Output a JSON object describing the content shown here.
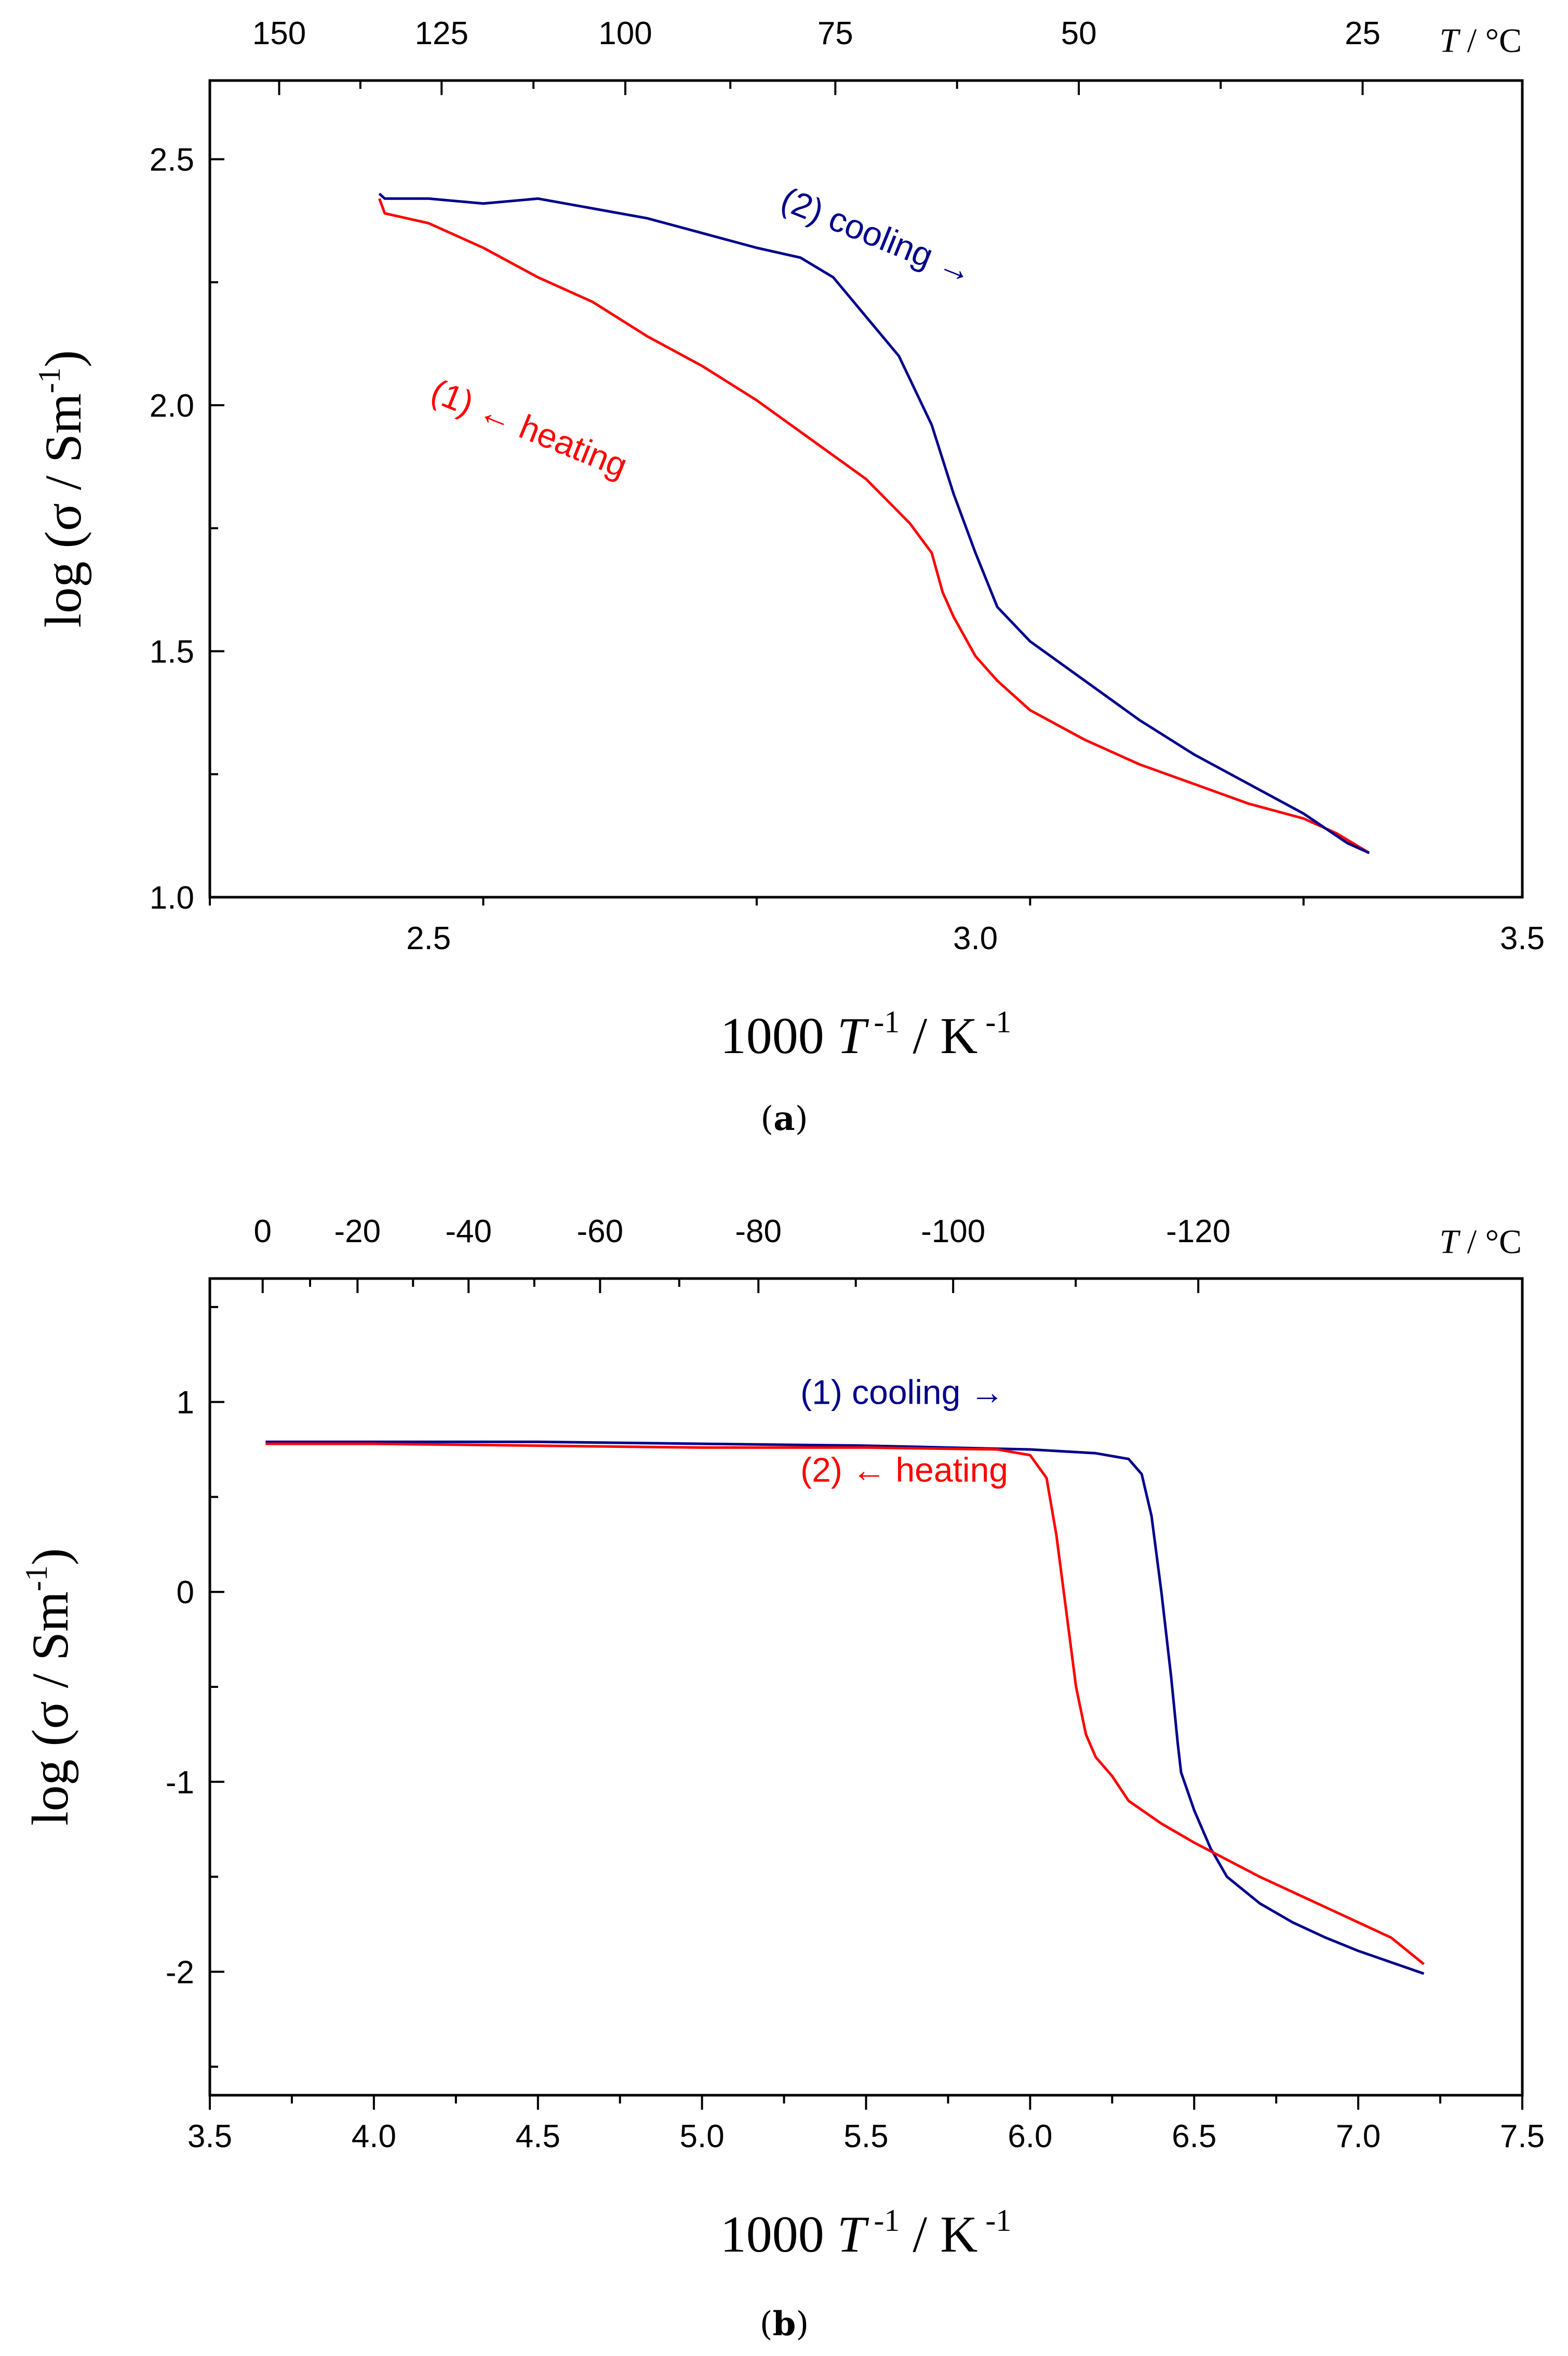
{
  "chart_data": [
    {
      "type": "line",
      "panel": "a",
      "caption": {
        "open": "(",
        "letter": "a",
        "close": ")"
      },
      "xlabel": {
        "base": "1000 ",
        "t": "T",
        "texp": " -1",
        "mid": " / K",
        "kexp": " -1"
      },
      "ylabel": {
        "main": "log (σ / Sm",
        "exp": "-1",
        "close": ")"
      },
      "xlim": [
        2.3,
        3.5
      ],
      "ylim": [
        1.0,
        2.66
      ],
      "x_ticks": [
        {
          "v": 2.5,
          "label": "2.5"
        },
        {
          "v": 3.0,
          "label": "3.0"
        },
        {
          "v": 3.5,
          "label": "3.5"
        }
      ],
      "y_ticks": [
        {
          "v": 1.0,
          "label": "1.0"
        },
        {
          "v": 1.5,
          "label": "1.5"
        },
        {
          "v": 2.0,
          "label": "2.0"
        },
        {
          "v": 2.5,
          "label": "2.5"
        }
      ],
      "top_axis": {
        "unit_t": "T",
        "unit_rest": " / °C",
        "ticks": [
          {
            "v": 2.3634,
            "label": "150"
          },
          {
            "v": 2.5119,
            "label": "125"
          },
          {
            "v": 2.6799,
            "label": "100"
          },
          {
            "v": 2.8719,
            "label": "75"
          },
          {
            "v": 3.0945,
            "label": "50"
          },
          {
            "v": 3.354,
            "label": "25"
          }
        ]
      },
      "series": [
        {
          "name": "(1) ← heating",
          "color": "#ff0000",
          "x": [
            2.455,
            2.46,
            2.5,
            2.55,
            2.6,
            2.65,
            2.7,
            2.75,
            2.8,
            2.85,
            2.9,
            2.94,
            2.96,
            2.97,
            2.98,
            3.0,
            3.02,
            3.05,
            3.1,
            3.15,
            3.2,
            3.25,
            3.3,
            3.33,
            3.36
          ],
          "y": [
            2.42,
            2.39,
            2.37,
            2.32,
            2.26,
            2.21,
            2.14,
            2.08,
            2.01,
            1.93,
            1.85,
            1.76,
            1.7,
            1.62,
            1.57,
            1.49,
            1.44,
            1.38,
            1.32,
            1.27,
            1.23,
            1.19,
            1.16,
            1.13,
            1.09
          ]
        },
        {
          "name": "(2) cooling →",
          "color": "#00008b",
          "x": [
            2.455,
            2.46,
            2.5,
            2.55,
            2.6,
            2.65,
            2.7,
            2.75,
            2.8,
            2.84,
            2.87,
            2.9,
            2.93,
            2.96,
            2.98,
            3.0,
            3.02,
            3.05,
            3.1,
            3.15,
            3.2,
            3.25,
            3.3,
            3.34,
            3.36
          ],
          "y": [
            2.43,
            2.42,
            2.42,
            2.41,
            2.42,
            2.4,
            2.38,
            2.35,
            2.32,
            2.3,
            2.26,
            2.18,
            2.1,
            1.96,
            1.82,
            1.7,
            1.59,
            1.52,
            1.44,
            1.36,
            1.29,
            1.23,
            1.17,
            1.11,
            1.09
          ]
        }
      ],
      "annotations": [
        {
          "text": "(2) cooling →",
          "color": "#00008b",
          "x": 2.82,
          "y": 2.4,
          "rotate": 22
        },
        {
          "text": "(1) ← heating",
          "color": "#ff0000",
          "x": 2.5,
          "y": 2.01,
          "rotate": 22
        }
      ]
    },
    {
      "type": "line",
      "panel": "b",
      "caption": {
        "open": "(",
        "letter": "b",
        "close": ")"
      },
      "xlabel": {
        "base": "1000 ",
        "t": "T",
        "texp": " -1",
        "mid": " / K",
        "kexp": " -1"
      },
      "ylabel": {
        "main": "log (σ / Sm",
        "exp": "-1",
        "close": ")"
      },
      "xlim": [
        3.5,
        7.5
      ],
      "ylim": [
        -2.65,
        1.65
      ],
      "x_ticks": [
        {
          "v": 3.5,
          "label": "3.5"
        },
        {
          "v": 4.0,
          "label": "4.0"
        },
        {
          "v": 4.5,
          "label": "4.5"
        },
        {
          "v": 5.0,
          "label": "5.0"
        },
        {
          "v": 5.5,
          "label": "5.5"
        },
        {
          "v": 6.0,
          "label": "6.0"
        },
        {
          "v": 6.5,
          "label": "6.5"
        },
        {
          "v": 7.0,
          "label": "7.0"
        },
        {
          "v": 7.5,
          "label": "7.5"
        }
      ],
      "y_ticks": [
        {
          "v": -2,
          "label": "-2"
        },
        {
          "v": -1,
          "label": "-1"
        },
        {
          "v": 0,
          "label": "0"
        },
        {
          "v": 1,
          "label": "1"
        }
      ],
      "top_axis": {
        "unit_t": "T",
        "unit_rest": " / °C",
        "ticks": [
          {
            "v": 3.661,
            "label": "0"
          },
          {
            "v": 3.9501,
            "label": "-20"
          },
          {
            "v": 4.2885,
            "label": "-40"
          },
          {
            "v": 4.6893,
            "label": "-60"
          },
          {
            "v": 5.1719,
            "label": "-80"
          },
          {
            "v": 5.7654,
            "label": "-100"
          },
          {
            "v": 6.5125,
            "label": "-120"
          }
        ]
      },
      "series": [
        {
          "name": "(1) cooling →",
          "color": "#00008b",
          "x": [
            3.67,
            4.0,
            4.5,
            5.0,
            5.5,
            6.0,
            6.2,
            6.3,
            6.34,
            6.37,
            6.4,
            6.43,
            6.45,
            6.46,
            6.5,
            6.55,
            6.6,
            6.7,
            6.8,
            6.9,
            7.0,
            7.1,
            7.2
          ],
          "y": [
            0.79,
            0.79,
            0.79,
            0.78,
            0.77,
            0.75,
            0.73,
            0.7,
            0.62,
            0.4,
            0.0,
            -0.45,
            -0.8,
            -0.95,
            -1.15,
            -1.35,
            -1.5,
            -1.64,
            -1.74,
            -1.82,
            -1.89,
            -1.95,
            -2.01
          ]
        },
        {
          "name": "(2) ← heating",
          "color": "#ff0000",
          "x": [
            3.67,
            4.0,
            4.5,
            5.0,
            5.5,
            5.9,
            6.0,
            6.05,
            6.08,
            6.11,
            6.14,
            6.17,
            6.2,
            6.25,
            6.3,
            6.4,
            6.5,
            6.6,
            6.7,
            6.8,
            6.9,
            7.0,
            7.1,
            7.2
          ],
          "y": [
            0.78,
            0.78,
            0.77,
            0.76,
            0.76,
            0.75,
            0.72,
            0.6,
            0.3,
            -0.1,
            -0.5,
            -0.75,
            -0.87,
            -0.97,
            -1.1,
            -1.22,
            -1.32,
            -1.41,
            -1.5,
            -1.58,
            -1.66,
            -1.74,
            -1.82,
            -1.96
          ]
        }
      ],
      "annotations": [
        {
          "text": "(1) cooling →",
          "color": "#00008b",
          "x": 5.3,
          "y": 0.99,
          "rotate": 0
        },
        {
          "text": "(2) ← heating",
          "color": "#ff0000",
          "x": 5.3,
          "y": 0.58,
          "rotate": 0
        }
      ]
    }
  ]
}
